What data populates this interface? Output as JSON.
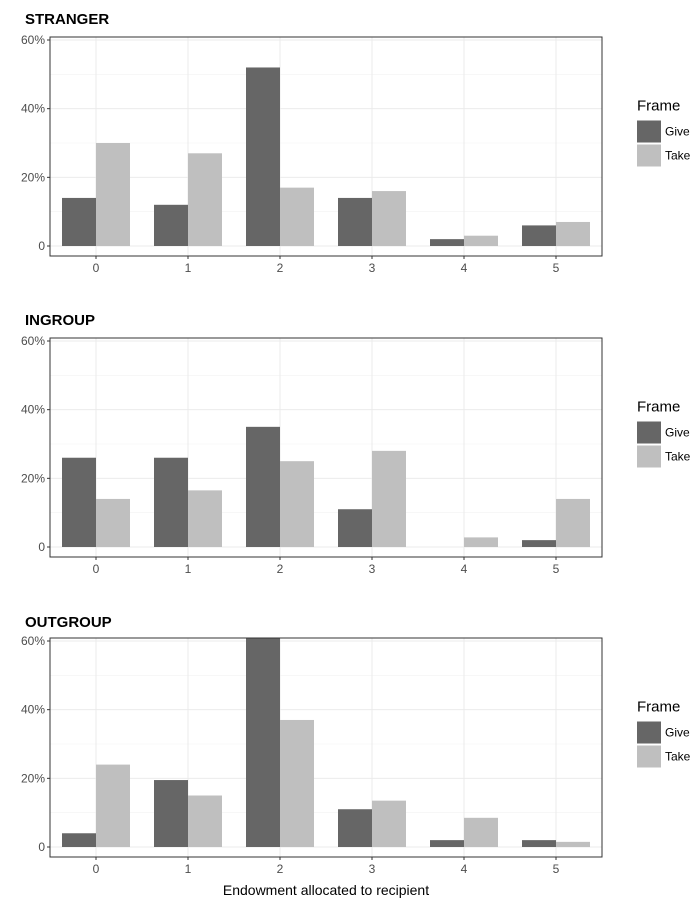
{
  "chart_data": [
    {
      "type": "bar",
      "title": "STRANGER",
      "categories": [
        "0",
        "1",
        "2",
        "3",
        "4",
        "5"
      ],
      "series": [
        {
          "name": "Give",
          "values": [
            14,
            12,
            52,
            14,
            2,
            6
          ],
          "color": "#666666"
        },
        {
          "name": "Take",
          "values": [
            30,
            27,
            17,
            16,
            3,
            7
          ],
          "color": "#bfbfbf"
        }
      ],
      "ylim": [
        0,
        60
      ],
      "yticks": [
        "0",
        "20%",
        "40%",
        "60%"
      ],
      "legend_title": "Frame",
      "legend_position": "right",
      "grid": true,
      "xlabel": "",
      "ylabel": ""
    },
    {
      "type": "bar",
      "title": "INGROUP",
      "categories": [
        "0",
        "1",
        "2",
        "3",
        "4",
        "5"
      ],
      "series": [
        {
          "name": "Give",
          "values": [
            26,
            26,
            35,
            11,
            0,
            2
          ],
          "color": "#666666"
        },
        {
          "name": "Take",
          "values": [
            14,
            16.5,
            25,
            28,
            2.8,
            14
          ],
          "color": "#bfbfbf"
        }
      ],
      "ylim": [
        0,
        60
      ],
      "yticks": [
        "0",
        "20%",
        "40%",
        "60%"
      ],
      "legend_title": "Frame",
      "legend_position": "right",
      "grid": true,
      "xlabel": "",
      "ylabel": ""
    },
    {
      "type": "bar",
      "title": "OUTGROUP",
      "categories": [
        "0",
        "1",
        "2",
        "3",
        "4",
        "5"
      ],
      "series": [
        {
          "name": "Give",
          "values": [
            4,
            19.5,
            61,
            11,
            2,
            2
          ],
          "color": "#666666"
        },
        {
          "name": "Take",
          "values": [
            24,
            15,
            37,
            13.5,
            8.5,
            1.5
          ],
          "color": "#bfbfbf"
        }
      ],
      "ylim": [
        0,
        60
      ],
      "yticks": [
        "0",
        "20%",
        "40%",
        "60%"
      ],
      "legend_title": "Frame",
      "legend_position": "right",
      "grid": true,
      "xlabel": "Endowment allocated to recipient",
      "ylabel": ""
    }
  ]
}
